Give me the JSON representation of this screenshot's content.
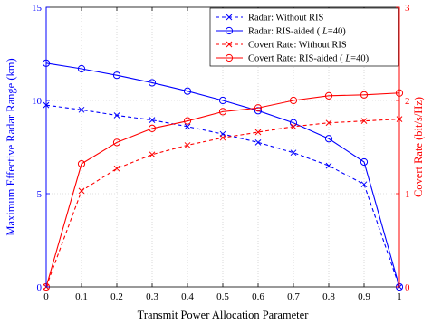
{
  "chart_data": {
    "type": "line",
    "xlabel": "Transmit Power Allocation Parameter",
    "ylabel_left": "Maximum Effective Radar Range (km)",
    "ylabel_right": "Covert Rate (bit/s/Hz)",
    "xlim": [
      0,
      1
    ],
    "ylim_left": [
      0,
      15
    ],
    "ylim_right": [
      0,
      3
    ],
    "x_ticks": [
      0,
      0.1,
      0.2,
      0.3,
      0.4,
      0.5,
      0.6,
      0.7,
      0.8,
      0.9,
      1
    ],
    "x_tick_labels": [
      "0",
      "0.1",
      "0.2",
      "0.3",
      "0.4",
      "0.5",
      "0.6",
      "0.7",
      "0.8",
      "0.9",
      "1"
    ],
    "y_left_ticks": [
      0,
      5,
      10,
      15
    ],
    "y_left_tick_labels": [
      "0",
      "5",
      "10",
      "15"
    ],
    "y_right_ticks": [
      0,
      1,
      2,
      3
    ],
    "y_right_tick_labels": [
      "0",
      "1",
      "2",
      "3"
    ],
    "grid": true,
    "legend_position": "top-right",
    "left_axis_color": "#0000ff",
    "right_axis_color": "#ff0000",
    "series": [
      {
        "name": "Radar: Without RIS",
        "axis": "left",
        "color": "#0000ff",
        "line_style": "dashed",
        "marker": "x",
        "x": [
          0,
          0.1,
          0.2,
          0.3,
          0.4,
          0.5,
          0.6,
          0.7,
          0.8,
          0.9,
          1
        ],
        "y": [
          9.75,
          9.5,
          9.2,
          8.95,
          8.6,
          8.2,
          7.75,
          7.2,
          6.5,
          5.5,
          0
        ]
      },
      {
        "name": "Radar: RIS-aided ( L=40)",
        "name_prefix": "Radar: RIS-aided ( ",
        "name_italic": "L",
        "name_suffix": "=40)",
        "axis": "left",
        "color": "#0000ff",
        "line_style": "solid",
        "marker": "o",
        "x": [
          0,
          0.1,
          0.2,
          0.3,
          0.4,
          0.5,
          0.6,
          0.7,
          0.8,
          0.9,
          1
        ],
        "y": [
          12.0,
          11.7,
          11.35,
          10.95,
          10.5,
          10.0,
          9.45,
          8.8,
          7.95,
          6.7,
          0
        ]
      },
      {
        "name": "Covert Rate: Without RIS",
        "axis": "right",
        "color": "#ff0000",
        "line_style": "dashed",
        "marker": "x",
        "x": [
          0,
          0.1,
          0.2,
          0.3,
          0.4,
          0.5,
          0.6,
          0.7,
          0.8,
          0.9,
          1
        ],
        "y": [
          0,
          1.03,
          1.27,
          1.42,
          1.52,
          1.6,
          1.66,
          1.72,
          1.76,
          1.78,
          1.8
        ]
      },
      {
        "name": "Covert Rate: RIS-aided ( L=40)",
        "name_prefix": "Covert Rate: RIS-aided ( ",
        "name_italic": "L",
        "name_suffix": "=40)",
        "axis": "right",
        "color": "#ff0000",
        "line_style": "solid",
        "marker": "o",
        "x": [
          0,
          0.1,
          0.2,
          0.3,
          0.4,
          0.5,
          0.6,
          0.7,
          0.8,
          0.9,
          1
        ],
        "y": [
          0,
          1.32,
          1.55,
          1.7,
          1.78,
          1.88,
          1.92,
          2.0,
          2.05,
          2.06,
          2.08
        ]
      }
    ]
  }
}
